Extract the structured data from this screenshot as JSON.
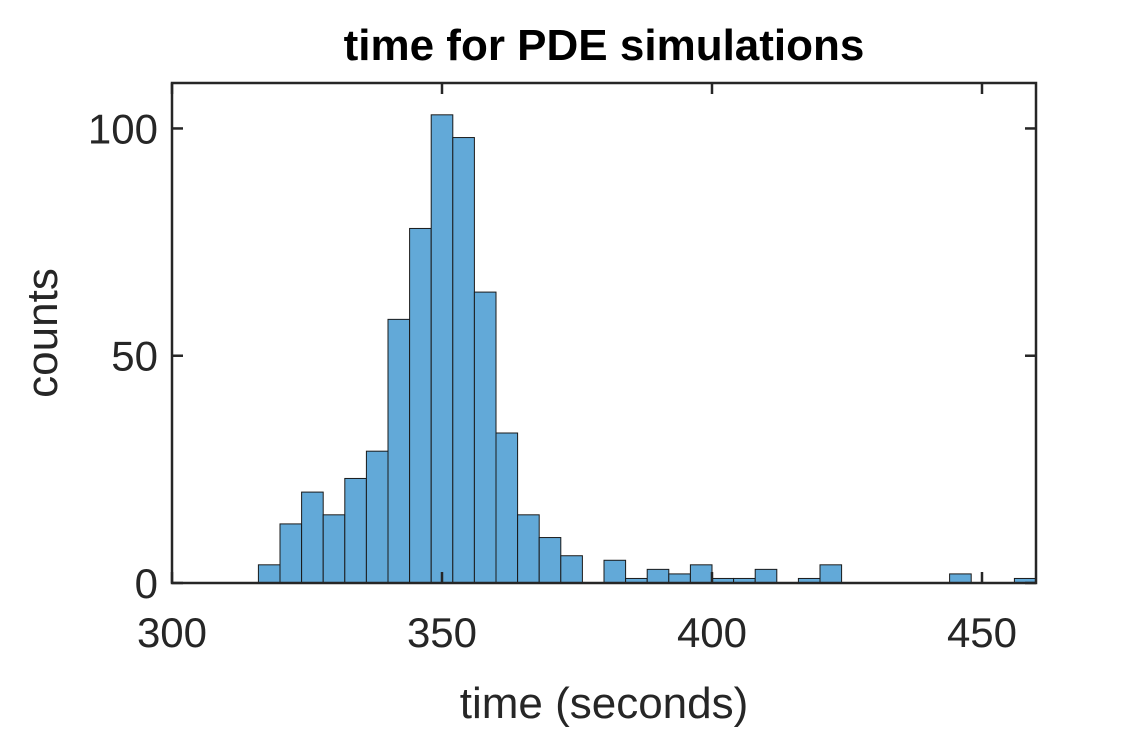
{
  "chart_data": {
    "type": "bar",
    "title": "time for PDE simulations",
    "xlabel": "time (seconds)",
    "ylabel": "counts",
    "xlim": [
      300,
      460
    ],
    "ylim": [
      0,
      110
    ],
    "xticks": [
      300,
      350,
      400,
      450
    ],
    "yticks": [
      0,
      50,
      100
    ],
    "bar_color": "#62a9d8",
    "bins": [
      {
        "x0": 316,
        "x1": 320,
        "count": 4
      },
      {
        "x0": 320,
        "x1": 324,
        "count": 13
      },
      {
        "x0": 324,
        "x1": 328,
        "count": 20
      },
      {
        "x0": 328,
        "x1": 332,
        "count": 15
      },
      {
        "x0": 332,
        "x1": 336,
        "count": 23
      },
      {
        "x0": 336,
        "x1": 340,
        "count": 29
      },
      {
        "x0": 340,
        "x1": 344,
        "count": 58
      },
      {
        "x0": 344,
        "x1": 348,
        "count": 78
      },
      {
        "x0": 348,
        "x1": 352,
        "count": 103
      },
      {
        "x0": 352,
        "x1": 356,
        "count": 98
      },
      {
        "x0": 356,
        "x1": 360,
        "count": 64
      },
      {
        "x0": 360,
        "x1": 364,
        "count": 33
      },
      {
        "x0": 364,
        "x1": 368,
        "count": 15
      },
      {
        "x0": 368,
        "x1": 372,
        "count": 10
      },
      {
        "x0": 372,
        "x1": 376,
        "count": 6
      },
      {
        "x0": 376,
        "x1": 380,
        "count": 0
      },
      {
        "x0": 380,
        "x1": 384,
        "count": 5
      },
      {
        "x0": 384,
        "x1": 388,
        "count": 1
      },
      {
        "x0": 388,
        "x1": 392,
        "count": 3
      },
      {
        "x0": 392,
        "x1": 396,
        "count": 2
      },
      {
        "x0": 396,
        "x1": 400,
        "count": 4
      },
      {
        "x0": 400,
        "x1": 404,
        "count": 1
      },
      {
        "x0": 404,
        "x1": 408,
        "count": 1
      },
      {
        "x0": 408,
        "x1": 412,
        "count": 3
      },
      {
        "x0": 412,
        "x1": 416,
        "count": 0
      },
      {
        "x0": 416,
        "x1": 420,
        "count": 1
      },
      {
        "x0": 420,
        "x1": 424,
        "count": 4
      },
      {
        "x0": 424,
        "x1": 428,
        "count": 0
      },
      {
        "x0": 428,
        "x1": 432,
        "count": 0
      },
      {
        "x0": 432,
        "x1": 436,
        "count": 0
      },
      {
        "x0": 436,
        "x1": 440,
        "count": 0
      },
      {
        "x0": 440,
        "x1": 444,
        "count": 0
      },
      {
        "x0": 444,
        "x1": 448,
        "count": 2
      },
      {
        "x0": 448,
        "x1": 452,
        "count": 0
      },
      {
        "x0": 452,
        "x1": 456,
        "count": 0
      },
      {
        "x0": 456,
        "x1": 460,
        "count": 1
      }
    ]
  }
}
